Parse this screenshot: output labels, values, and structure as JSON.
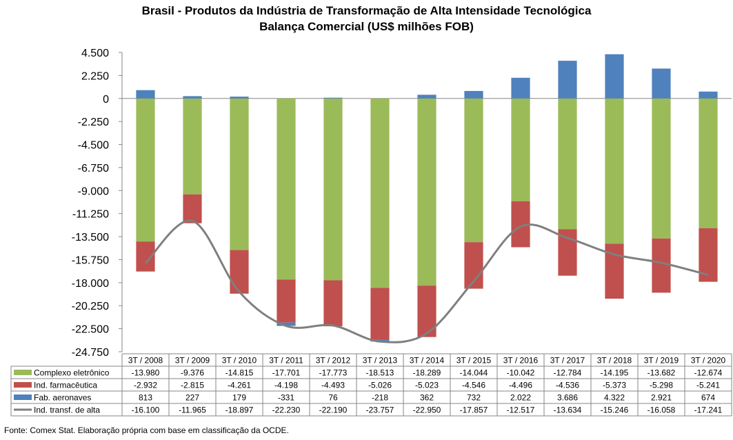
{
  "title_line_1": "Brasil - Produtos da Indústria de Transformação  de Alta Intensidade Tecnológica",
  "title_line_2": "Balança Comercial (US$ milhões FOB)",
  "source_note": "Fonte: Comex Stat. Elaboração própria com base em classificação da OCDE.",
  "chart_data": {
    "type": "bar",
    "stacked": true,
    "categories": [
      "3T / 2008",
      "3T / 2009",
      "3T / 2010",
      "3T / 2011",
      "3T / 2012",
      "3T / 2013",
      "3T / 2014",
      "3T / 2015",
      "3T / 2016",
      "3T / 2017",
      "3T / 2018",
      "3T / 2019",
      "3T / 2020"
    ],
    "y_ticks": [
      "4.500",
      "2.250",
      "0",
      "-2.250",
      "-4.500",
      "-6.750",
      "-9.000",
      "-11.250",
      "-13.500",
      "-15.750",
      "-18.000",
      "-20.250",
      "-22.500",
      "-24.750"
    ],
    "ylim": [
      -24750,
      4500
    ],
    "grid": false,
    "legend": "data-table",
    "series": [
      {
        "name": "Complexo eletrônico",
        "kind": "bar",
        "color": "#9bbb59",
        "values": [
          -13980,
          -9376,
          -14815,
          -17701,
          -17773,
          -18513,
          -18289,
          -14044,
          -10042,
          -12784,
          -14195,
          -13682,
          -12674
        ],
        "labels": [
          "-13.980",
          "-9.376",
          "-14.815",
          "-17.701",
          "-17.773",
          "-18.513",
          "-18.289",
          "-14.044",
          "-10.042",
          "-12.784",
          "-14.195",
          "-13.682",
          "-12.674"
        ]
      },
      {
        "name": "Ind. farmacêutica",
        "kind": "bar",
        "color": "#c0504d",
        "values": [
          -2932,
          -2815,
          -4261,
          -4198,
          -4493,
          -5026,
          -5023,
          -4546,
          -4496,
          -4536,
          -5373,
          -5298,
          -5241
        ],
        "labels": [
          "-2.932",
          "-2.815",
          "-4.261",
          "-4.198",
          "-4.493",
          "-5.026",
          "-5.023",
          "-4.546",
          "-4.496",
          "-4.536",
          "-5.373",
          "-5.298",
          "-5.241"
        ]
      },
      {
        "name": "Fab. aeronaves",
        "kind": "bar",
        "color": "#4f81bd",
        "values": [
          813,
          227,
          179,
          -331,
          76,
          -218,
          362,
          732,
          2022,
          3686,
          4322,
          2921,
          674
        ],
        "labels": [
          "813",
          "227",
          "179",
          "-331",
          "76",
          "-218",
          "362",
          "732",
          "2.022",
          "3.686",
          "4.322",
          "2.921",
          "674"
        ]
      },
      {
        "name": "Ind. transf. de alta",
        "kind": "line",
        "color": "#7f7f7f",
        "values": [
          -16100,
          -11965,
          -18897,
          -22230,
          -22190,
          -23757,
          -22950,
          -17857,
          -12517,
          -13634,
          -15246,
          -16058,
          -17241
        ],
        "labels": [
          "-16.100",
          "-11.965",
          "-18.897",
          "-22.230",
          "-22.190",
          "-23.757",
          "-22.950",
          "-17.857",
          "-12.517",
          "-13.634",
          "-15.246",
          "-16.058",
          "-17.241"
        ]
      }
    ]
  }
}
